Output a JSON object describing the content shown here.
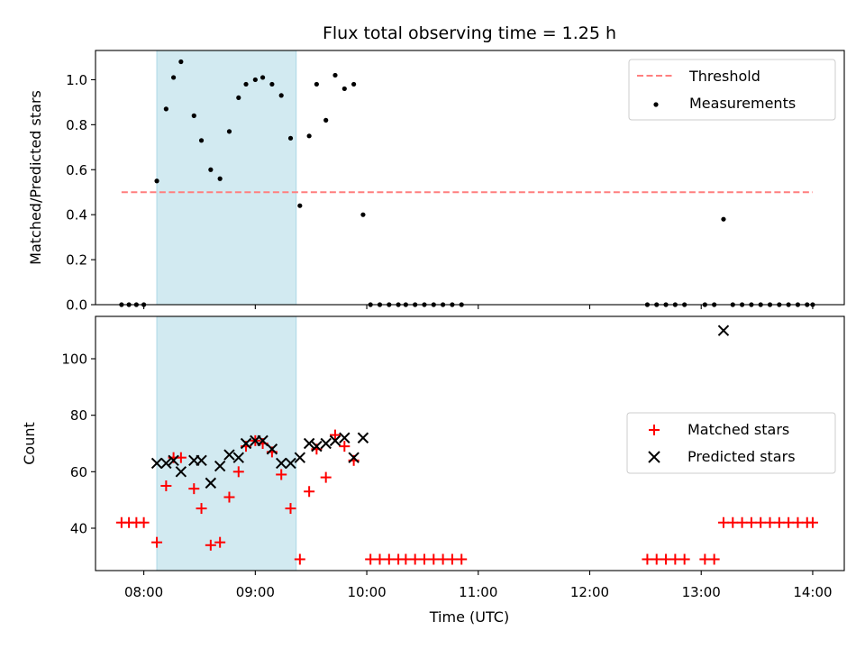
{
  "figure": {
    "title": "Flux total observing time = 1.25 h",
    "xlabel": "Time (UTC)",
    "x_ticks": [
      "08:00",
      "09:00",
      "10:00",
      "11:00",
      "12:00",
      "13:00",
      "14:00"
    ]
  },
  "chart_data": [
    {
      "type": "scatter",
      "panel": "top",
      "ylabel": "Matched/Predicted stars",
      "xlim": [
        "07:34",
        "14:17"
      ],
      "ylim": [
        0,
        1.13
      ],
      "y_ticks": [
        "0.0",
        "0.2",
        "0.4",
        "0.6",
        "0.8",
        "1.0"
      ],
      "shaded_span": {
        "x": [
          "08:07",
          "09:22"
        ],
        "color": "#add8e6"
      },
      "threshold": {
        "name": "Threshold",
        "y": 0.5,
        "x": [
          "07:48",
          "14:00"
        ],
        "color": "#ff7f7f",
        "style": "dashed"
      },
      "series": [
        {
          "name": "Measurements",
          "color": "#000000",
          "x": [
            "07:48",
            "07:52",
            "07:56",
            "08:00",
            "08:07",
            "08:12",
            "08:16",
            "08:20",
            "08:27",
            "08:31",
            "08:36",
            "08:41",
            "08:46",
            "08:51",
            "08:55",
            "09:00",
            "09:04",
            "09:09",
            "09:14",
            "09:19",
            "09:24",
            "09:29",
            "09:33",
            "09:38",
            "09:43",
            "09:48",
            "09:53",
            "09:58",
            "10:02",
            "10:07",
            "10:12",
            "10:17",
            "10:21",
            "10:26",
            "10:31",
            "10:36",
            "10:41",
            "10:46",
            "10:51",
            "12:31",
            "12:36",
            "12:41",
            "12:46",
            "12:51",
            "13:02",
            "13:07",
            "13:12",
            "13:17",
            "13:22",
            "13:27",
            "13:32",
            "13:37",
            "13:42",
            "13:47",
            "13:52",
            "13:57",
            "14:00"
          ],
          "y": [
            0,
            0,
            0,
            0,
            0.55,
            0.87,
            1.01,
            1.08,
            0.84,
            0.73,
            0.6,
            0.56,
            0.77,
            0.92,
            0.98,
            1.0,
            1.01,
            0.98,
            0.93,
            0.74,
            0.44,
            0.75,
            0.98,
            0.82,
            1.02,
            0.96,
            0.98,
            0.4,
            0,
            0,
            0,
            0,
            0,
            0,
            0,
            0,
            0,
            0,
            0,
            0,
            0,
            0,
            0,
            0,
            0,
            0,
            0.38,
            0,
            0,
            0,
            0,
            0,
            0,
            0,
            0,
            0,
            0
          ]
        }
      ]
    },
    {
      "type": "scatter",
      "panel": "bottom",
      "ylabel": "Count",
      "xlim": [
        "07:34",
        "14:17"
      ],
      "ylim": [
        25,
        115
      ],
      "y_ticks": [
        "40",
        "60",
        "80",
        "100"
      ],
      "shaded_span": {
        "x": [
          "08:07",
          "09:22"
        ],
        "color": "#add8e6"
      },
      "series": [
        {
          "name": "Matched stars",
          "marker": "+",
          "color": "#ff0000",
          "x": [
            "07:48",
            "07:52",
            "07:56",
            "08:00",
            "08:07",
            "08:12",
            "08:16",
            "08:20",
            "08:27",
            "08:31",
            "08:36",
            "08:41",
            "08:46",
            "08:51",
            "08:55",
            "09:00",
            "09:04",
            "09:09",
            "09:14",
            "09:19",
            "09:24",
            "09:29",
            "09:33",
            "09:38",
            "09:43",
            "09:48",
            "09:53",
            "10:02",
            "10:07",
            "10:12",
            "10:17",
            "10:21",
            "10:26",
            "10:31",
            "10:36",
            "10:41",
            "10:46",
            "10:51",
            "12:31",
            "12:36",
            "12:41",
            "12:46",
            "12:51",
            "13:02",
            "13:07",
            "13:12",
            "13:17",
            "13:22",
            "13:27",
            "13:32",
            "13:37",
            "13:42",
            "13:47",
            "13:52",
            "13:57",
            "14:00"
          ],
          "y": [
            42,
            42,
            42,
            42,
            35,
            55,
            65,
            65,
            54,
            47,
            34,
            35,
            51,
            60,
            69,
            71,
            70,
            67,
            59,
            47,
            29,
            53,
            68,
            58,
            73,
            69,
            64,
            29,
            29,
            29,
            29,
            29,
            29,
            29,
            29,
            29,
            29,
            29,
            29,
            29,
            29,
            29,
            29,
            29,
            29,
            42,
            42,
            42,
            42,
            42,
            42,
            42,
            42,
            42,
            42,
            42
          ]
        },
        {
          "name": "Predicted stars",
          "marker": "x",
          "color": "#000000",
          "x": [
            "08:07",
            "08:12",
            "08:16",
            "08:20",
            "08:27",
            "08:31",
            "08:36",
            "08:41",
            "08:46",
            "08:51",
            "08:55",
            "09:00",
            "09:04",
            "09:09",
            "09:14",
            "09:19",
            "09:24",
            "09:29",
            "09:33",
            "09:38",
            "09:43",
            "09:48",
            "09:53",
            "09:58",
            "13:12"
          ],
          "y": [
            63,
            63,
            64,
            60,
            64,
            64,
            56,
            62,
            66,
            65,
            70,
            71,
            71,
            68,
            63,
            63,
            65,
            70,
            69,
            70,
            71,
            72,
            65,
            72,
            110
          ]
        }
      ]
    }
  ]
}
